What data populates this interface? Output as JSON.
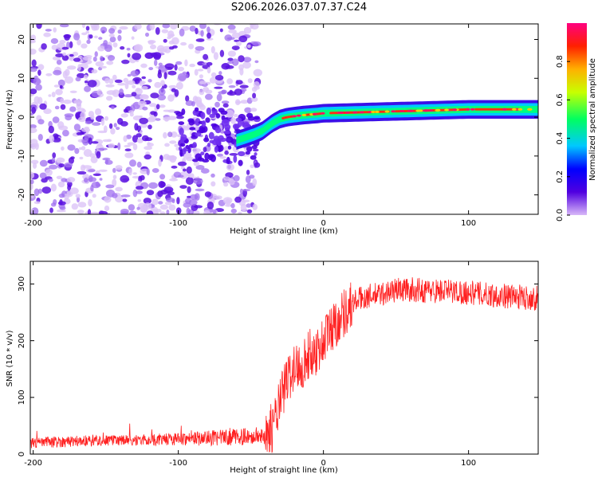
{
  "title": "S206.2026.037.07.37.C24",
  "chart_data": [
    {
      "type": "heatmap",
      "title": "S206.2026.037.07.37.C24",
      "xlabel": "Height of straight line (km)",
      "ylabel": "Frequency (Hz)",
      "xlim": [
        -202,
        148
      ],
      "ylim": [
        -25,
        24
      ],
      "xticks": [
        -200,
        -100,
        0,
        100
      ],
      "yticks": [
        -20,
        -10,
        0,
        10,
        20
      ],
      "colorbar": {
        "label": "Normalized spectral amplitude",
        "range": [
          0,
          1
        ],
        "ticks": [
          "0.0",
          "0.2",
          "0.4",
          "0.6",
          "0.8"
        ],
        "colors": [
          "#d8b8f8",
          "#5000e0",
          "#0000ff",
          "#00c8ff",
          "#00ff60",
          "#c8ff00",
          "#ffb000",
          "#ff2000",
          "#ff0080"
        ]
      },
      "noise_region_km": [
        -202,
        -45
      ],
      "signal_ridge": {
        "x": [
          -60,
          -48,
          -42,
          -35,
          -30,
          -25,
          -15,
          -5,
          0,
          20,
          50,
          80,
          100,
          120,
          148
        ],
        "freq": [
          -6,
          -4.5,
          -3.5,
          -1.5,
          -0.5,
          0,
          0.5,
          0.8,
          1,
          1.2,
          1.5,
          1.8,
          2,
          2,
          2
        ]
      }
    },
    {
      "type": "line",
      "xlabel": "Height of straight line (km)",
      "ylabel": "SNR (10 * v/v)",
      "xlim": [
        -202,
        148
      ],
      "ylim": [
        0,
        340
      ],
      "xticks": [
        -200,
        -100,
        0,
        100
      ],
      "yticks": [
        0,
        100,
        200,
        300
      ],
      "color": "#ff2020",
      "series": [
        {
          "name": "SNR",
          "x": [
            -202,
            -180,
            -160,
            -140,
            -120,
            -100,
            -80,
            -60,
            -45,
            -38,
            -34,
            -30,
            -26,
            -22,
            -18,
            -14,
            -10,
            -6,
            -2,
            2,
            6,
            10,
            14,
            18,
            22,
            26,
            30,
            40,
            50,
            60,
            70,
            80,
            90,
            100,
            110,
            120,
            130,
            140,
            148
          ],
          "y": [
            20,
            22,
            24,
            24,
            25,
            27,
            28,
            30,
            32,
            35,
            55,
            90,
            125,
            145,
            155,
            160,
            175,
            180,
            190,
            210,
            225,
            235,
            250,
            260,
            270,
            275,
            278,
            282,
            290,
            290,
            288,
            288,
            287,
            285,
            282,
            280,
            278,
            276,
            275
          ]
        }
      ]
    }
  ]
}
